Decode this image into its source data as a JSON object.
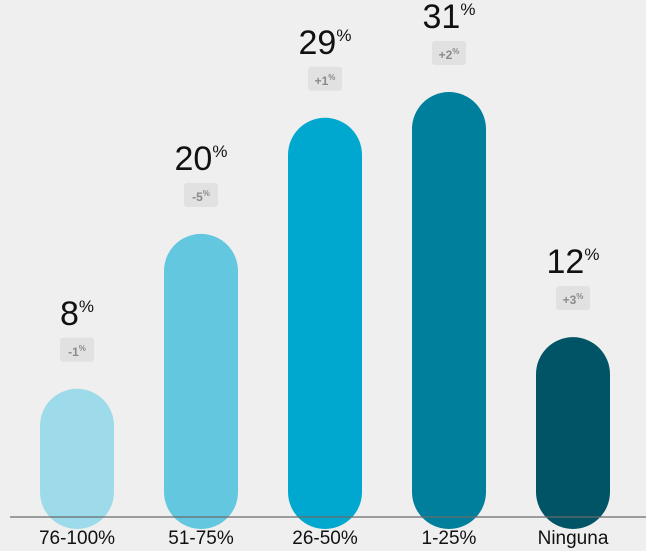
{
  "chart_data": {
    "type": "bar",
    "title": "",
    "xlabel": "",
    "ylabel": "",
    "ylim": [
      0,
      31
    ],
    "grid": false,
    "categories": [
      "76-100%",
      "51-75%",
      "26-50%",
      "1-25%",
      "Ninguna"
    ],
    "values": [
      8,
      20,
      29,
      31,
      12
    ],
    "value_labels": [
      "8",
      "20",
      "29",
      "31",
      "12"
    ],
    "value_suffix": "%",
    "changes": [
      "-1",
      "-5",
      "+1",
      "+2",
      "+3"
    ],
    "change_suffix": "%",
    "colors": [
      "#9edbea",
      "#62c7df",
      "#00a8cf",
      "#007f9c",
      "#005466"
    ],
    "background": "#efefef",
    "change_badge_color": "#e1e1e1",
    "axis_color": "#6a6a6a"
  }
}
